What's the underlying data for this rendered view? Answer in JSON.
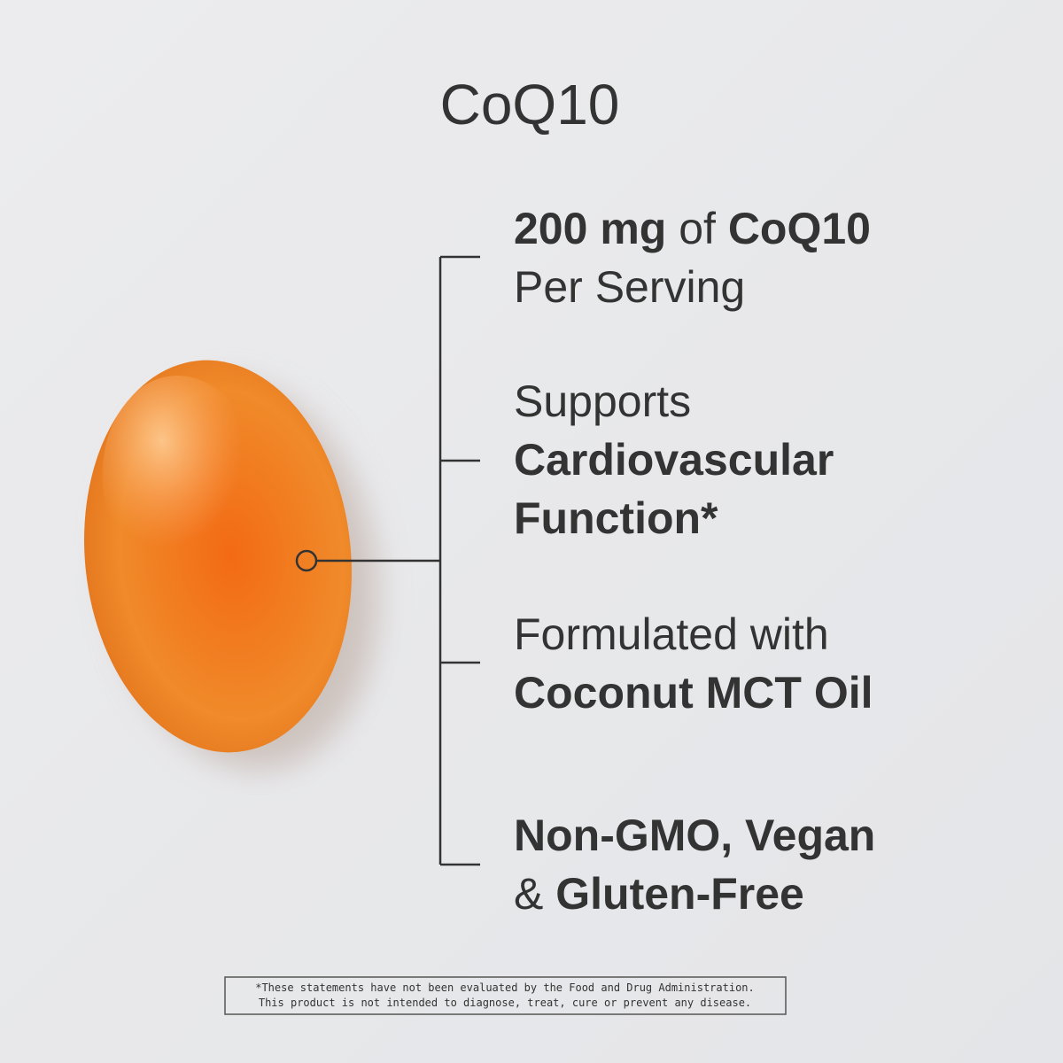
{
  "title": "CoQ10",
  "features": [
    {
      "lines": [
        [
          {
            "text": "200 mg",
            "bold": true
          },
          {
            "text": " of ",
            "bold": false
          },
          {
            "text": "CoQ10",
            "bold": true
          }
        ],
        [
          {
            "text": "Per Serving",
            "bold": false
          }
        ]
      ]
    },
    {
      "lines": [
        [
          {
            "text": "Supports",
            "bold": false
          }
        ],
        [
          {
            "text": "Cardiovascular",
            "bold": true
          }
        ],
        [
          {
            "text": "Function*",
            "bold": true
          }
        ]
      ]
    },
    {
      "lines": [
        [
          {
            "text": "Formulated with",
            "bold": false
          }
        ],
        [
          {
            "text": "Coconut MCT Oil",
            "bold": true
          }
        ]
      ]
    },
    {
      "lines": [
        [
          {
            "text": "Non-GMO, Vegan",
            "bold": true
          }
        ],
        [
          {
            "text": "& ",
            "bold": false
          },
          {
            "text": "Gluten-Free",
            "bold": true
          }
        ]
      ]
    }
  ],
  "disclaimer": [
    "*These statements have not been evaluated by the Food and Drug Administration.",
    "This product is not intended to diagnose, treat, cure or prevent any disease."
  ]
}
